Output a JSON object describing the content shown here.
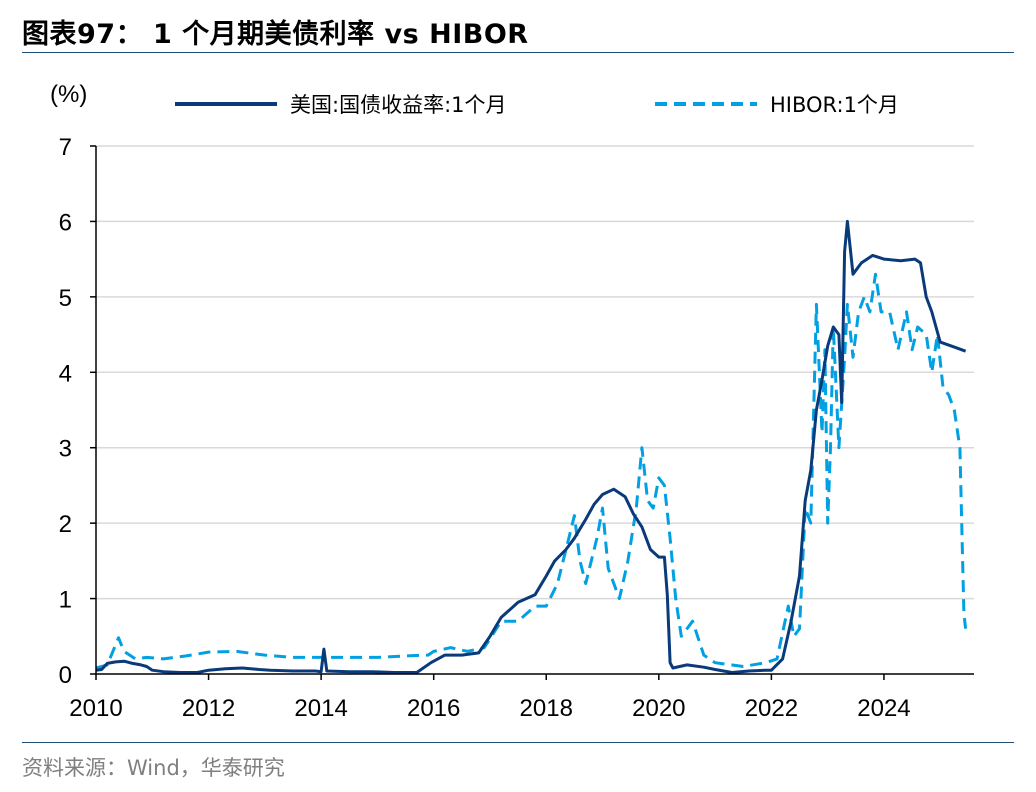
{
  "header": {
    "title": "图表97：  1 个月期美债利率 vs HIBOR"
  },
  "footer": {
    "source": "资料来源：Wind，华泰研究"
  },
  "chart_data": {
    "type": "line",
    "unit_label": "(%)",
    "ylim": [
      0,
      7
    ],
    "y_ticks": [
      "0",
      "1",
      "2",
      "3",
      "4",
      "5",
      "6",
      "7"
    ],
    "xlim": [
      2010,
      2025.6
    ],
    "x_ticks": [
      "2010",
      "2012",
      "2014",
      "2016",
      "2018",
      "2020",
      "2022",
      "2024"
    ],
    "grid": true,
    "legend_position": "top",
    "series": [
      {
        "name": "美国:国债收益率:1个月",
        "color": "#0a3a7a",
        "style": "solid",
        "points": [
          [
            2010.0,
            0.05
          ],
          [
            2010.1,
            0.06
          ],
          [
            2010.2,
            0.14
          ],
          [
            2010.35,
            0.16
          ],
          [
            2010.5,
            0.17
          ],
          [
            2010.65,
            0.14
          ],
          [
            2010.8,
            0.12
          ],
          [
            2010.9,
            0.1
          ],
          [
            2011.0,
            0.05
          ],
          [
            2011.2,
            0.03
          ],
          [
            2011.5,
            0.02
          ],
          [
            2011.8,
            0.02
          ],
          [
            2012.0,
            0.05
          ],
          [
            2012.3,
            0.07
          ],
          [
            2012.6,
            0.08
          ],
          [
            2012.9,
            0.06
          ],
          [
            2013.1,
            0.05
          ],
          [
            2013.5,
            0.04
          ],
          [
            2013.9,
            0.04
          ],
          [
            2014.0,
            0.03
          ],
          [
            2014.05,
            0.33
          ],
          [
            2014.1,
            0.04
          ],
          [
            2014.5,
            0.03
          ],
          [
            2014.9,
            0.03
          ],
          [
            2015.3,
            0.02
          ],
          [
            2015.7,
            0.02
          ],
          [
            2015.95,
            0.15
          ],
          [
            2016.2,
            0.25
          ],
          [
            2016.5,
            0.25
          ],
          [
            2016.8,
            0.28
          ],
          [
            2017.0,
            0.5
          ],
          [
            2017.2,
            0.75
          ],
          [
            2017.5,
            0.95
          ],
          [
            2017.8,
            1.05
          ],
          [
            2018.0,
            1.3
          ],
          [
            2018.15,
            1.5
          ],
          [
            2018.35,
            1.65
          ],
          [
            2018.5,
            1.8
          ],
          [
            2018.7,
            2.05
          ],
          [
            2018.85,
            2.25
          ],
          [
            2019.0,
            2.38
          ],
          [
            2019.2,
            2.45
          ],
          [
            2019.4,
            2.35
          ],
          [
            2019.55,
            2.12
          ],
          [
            2019.7,
            1.95
          ],
          [
            2019.85,
            1.65
          ],
          [
            2020.0,
            1.55
          ],
          [
            2020.1,
            1.55
          ],
          [
            2020.15,
            1.05
          ],
          [
            2020.2,
            0.15
          ],
          [
            2020.25,
            0.08
          ],
          [
            2020.5,
            0.12
          ],
          [
            2020.8,
            0.09
          ],
          [
            2021.0,
            0.06
          ],
          [
            2021.3,
            0.02
          ],
          [
            2021.6,
            0.04
          ],
          [
            2021.9,
            0.05
          ],
          [
            2022.0,
            0.05
          ],
          [
            2022.2,
            0.2
          ],
          [
            2022.35,
            0.7
          ],
          [
            2022.5,
            1.3
          ],
          [
            2022.6,
            2.3
          ],
          [
            2022.7,
            2.7
          ],
          [
            2022.8,
            3.5
          ],
          [
            2022.9,
            3.9
          ],
          [
            2023.0,
            4.35
          ],
          [
            2023.1,
            4.6
          ],
          [
            2023.2,
            4.5
          ],
          [
            2023.25,
            3.6
          ],
          [
            2023.3,
            5.6
          ],
          [
            2023.35,
            6.0
          ],
          [
            2023.45,
            5.3
          ],
          [
            2023.6,
            5.45
          ],
          [
            2023.8,
            5.55
          ],
          [
            2024.0,
            5.5
          ],
          [
            2024.3,
            5.48
          ],
          [
            2024.55,
            5.5
          ],
          [
            2024.65,
            5.45
          ],
          [
            2024.75,
            5.0
          ],
          [
            2024.85,
            4.8
          ],
          [
            2025.0,
            4.4
          ],
          [
            2025.3,
            4.32
          ],
          [
            2025.45,
            4.28
          ]
        ]
      },
      {
        "name": "HIBOR:1个月",
        "color": "#00a0e3",
        "style": "dashed",
        "points": [
          [
            2010.0,
            0.08
          ],
          [
            2010.2,
            0.12
          ],
          [
            2010.4,
            0.48
          ],
          [
            2010.5,
            0.3
          ],
          [
            2010.7,
            0.2
          ],
          [
            2010.9,
            0.22
          ],
          [
            2011.2,
            0.2
          ],
          [
            2011.6,
            0.24
          ],
          [
            2012.0,
            0.29
          ],
          [
            2012.5,
            0.3
          ],
          [
            2013.0,
            0.25
          ],
          [
            2013.5,
            0.22
          ],
          [
            2014.0,
            0.22
          ],
          [
            2014.5,
            0.22
          ],
          [
            2015.0,
            0.22
          ],
          [
            2015.5,
            0.24
          ],
          [
            2015.9,
            0.25
          ],
          [
            2016.0,
            0.3
          ],
          [
            2016.3,
            0.35
          ],
          [
            2016.6,
            0.3
          ],
          [
            2016.9,
            0.35
          ],
          [
            2017.2,
            0.7
          ],
          [
            2017.5,
            0.7
          ],
          [
            2017.8,
            0.9
          ],
          [
            2018.0,
            0.9
          ],
          [
            2018.2,
            1.2
          ],
          [
            2018.4,
            1.8
          ],
          [
            2018.5,
            2.1
          ],
          [
            2018.6,
            1.5
          ],
          [
            2018.7,
            1.2
          ],
          [
            2018.9,
            1.8
          ],
          [
            2019.0,
            2.2
          ],
          [
            2019.1,
            1.4
          ],
          [
            2019.3,
            1.0
          ],
          [
            2019.45,
            1.5
          ],
          [
            2019.6,
            2.2
          ],
          [
            2019.7,
            3.0
          ],
          [
            2019.8,
            2.3
          ],
          [
            2019.9,
            2.2
          ],
          [
            2020.0,
            2.6
          ],
          [
            2020.1,
            2.5
          ],
          [
            2020.2,
            1.8
          ],
          [
            2020.3,
            1.0
          ],
          [
            2020.4,
            0.5
          ],
          [
            2020.6,
            0.7
          ],
          [
            2020.8,
            0.25
          ],
          [
            2021.0,
            0.15
          ],
          [
            2021.5,
            0.1
          ],
          [
            2021.9,
            0.15
          ],
          [
            2022.1,
            0.2
          ],
          [
            2022.3,
            0.9
          ],
          [
            2022.4,
            0.5
          ],
          [
            2022.5,
            0.6
          ],
          [
            2022.6,
            2.2
          ],
          [
            2022.7,
            2.0
          ],
          [
            2022.8,
            4.9
          ],
          [
            2022.9,
            3.2
          ],
          [
            2022.95,
            4.3
          ],
          [
            2023.0,
            2.0
          ],
          [
            2023.05,
            3.0
          ],
          [
            2023.1,
            4.6
          ],
          [
            2023.2,
            3.0
          ],
          [
            2023.3,
            4.2
          ],
          [
            2023.35,
            4.9
          ],
          [
            2023.45,
            4.2
          ],
          [
            2023.55,
            4.8
          ],
          [
            2023.65,
            5.0
          ],
          [
            2023.75,
            4.8
          ],
          [
            2023.85,
            5.3
          ],
          [
            2023.95,
            4.8
          ],
          [
            2024.1,
            4.8
          ],
          [
            2024.25,
            4.3
          ],
          [
            2024.4,
            4.8
          ],
          [
            2024.5,
            4.3
          ],
          [
            2024.6,
            4.6
          ],
          [
            2024.75,
            4.5
          ],
          [
            2024.85,
            4.0
          ],
          [
            2024.95,
            4.5
          ],
          [
            2025.05,
            3.8
          ],
          [
            2025.15,
            3.7
          ],
          [
            2025.25,
            3.5
          ],
          [
            2025.35,
            3.0
          ],
          [
            2025.42,
            0.8
          ],
          [
            2025.45,
            0.6
          ]
        ]
      }
    ]
  }
}
